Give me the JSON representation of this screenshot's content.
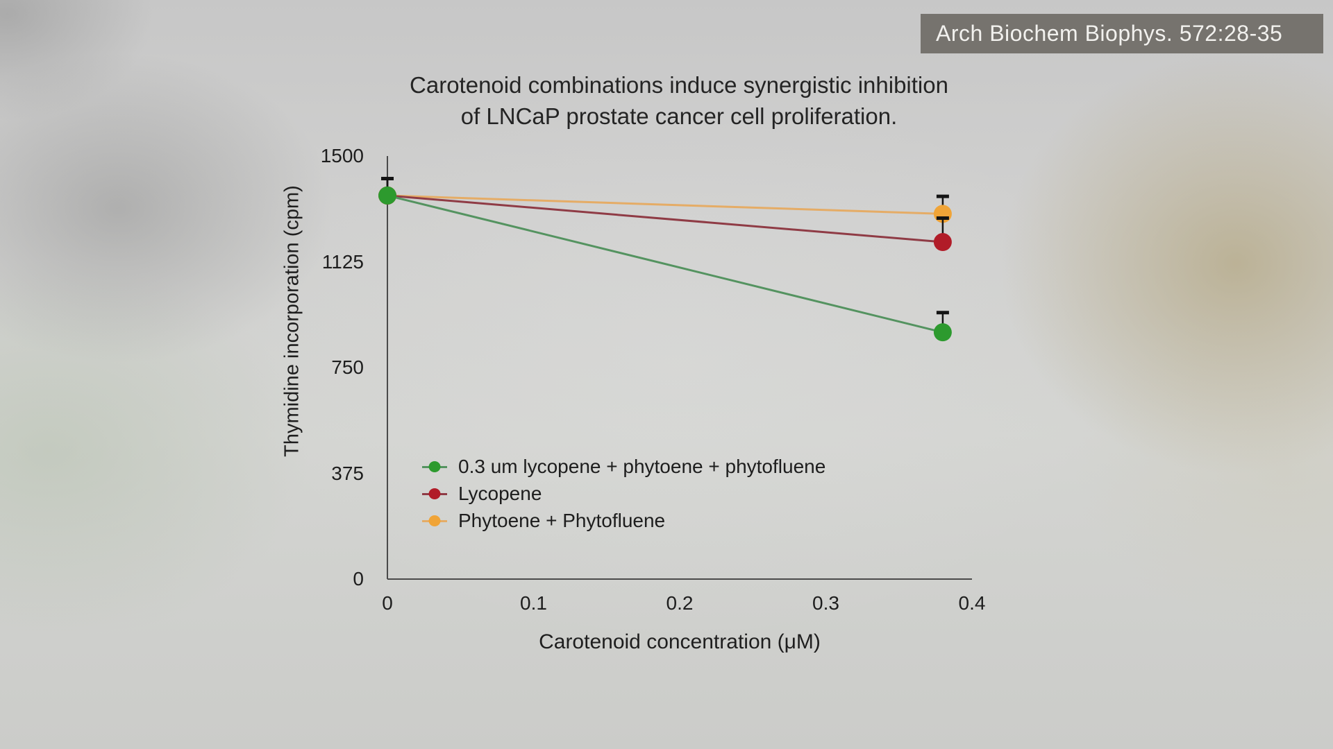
{
  "citation": {
    "text": "Arch Biochem Biophys. 572:28-35"
  },
  "title_lines": [
    "Carotenoid combinations induce synergistic inhibition",
    "of LNCaP prostate cancer cell proliferation."
  ],
  "chart_data": {
    "type": "line",
    "title": "Carotenoid combinations induce synergistic inhibition of LNCaP prostate cancer cell proliferation.",
    "xlabel": "Carotenoid concentration (μM)",
    "ylabel": "Thymidine incorporation (cpm)",
    "xlim": [
      0,
      0.4
    ],
    "ylim": [
      0,
      1500
    ],
    "xticks": [
      "0",
      "0.1",
      "0.2",
      "0.3",
      "0.4"
    ],
    "yticks": [
      "0",
      "375",
      "750",
      "1125",
      "1500"
    ],
    "grid": false,
    "legend_position": "inside lower-left",
    "x": [
      0,
      0.38
    ],
    "series": [
      {
        "name": "0.3 um lycopene + phytoene + phytofluene",
        "marker_color": "#2d9a2e",
        "line_color": "#549360",
        "values": [
          1360,
          875
        ],
        "error_up": [
          60,
          70
        ]
      },
      {
        "name": "Lycopene",
        "marker_color": "#b11c28",
        "line_color": "#8f3b45",
        "values": [
          1360,
          1195
        ],
        "error_up": [
          60,
          85
        ]
      },
      {
        "name": "Phytoene + Phytofluene",
        "marker_color": "#f0a437",
        "line_color": "#e5ac66",
        "values": [
          1360,
          1295
        ],
        "error_up": [
          60,
          62
        ]
      }
    ],
    "colors": {
      "axis": "#4a4a4a",
      "error_bar": "#141414",
      "text": "#1d1d1d",
      "badge_bg": "#76736e",
      "badge_text": "#f2f1ee"
    }
  }
}
